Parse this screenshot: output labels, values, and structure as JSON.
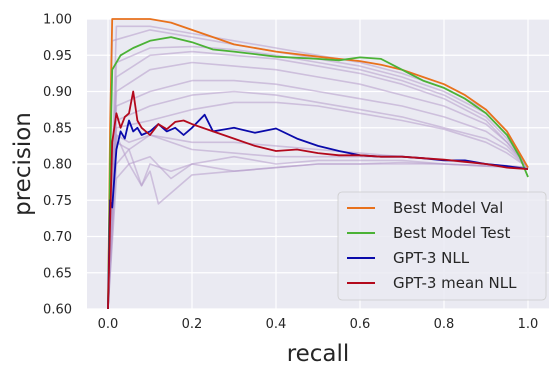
{
  "chart_data": {
    "type": "line",
    "xlabel": "recall",
    "ylabel": "precision",
    "xlim": [
      -0.05,
      1.05
    ],
    "ylim": [
      0.6,
      1.0
    ],
    "x_ticks": [
      0.0,
      0.2,
      0.4,
      0.6,
      0.8,
      1.0
    ],
    "x_tick_labels": [
      "0.0",
      "0.2",
      "0.4",
      "0.6",
      "0.8",
      "1.0"
    ],
    "y_ticks": [
      0.6,
      0.65,
      0.7,
      0.75,
      0.8,
      0.85,
      0.9,
      0.95,
      1.0
    ],
    "y_tick_labels": [
      "0.60",
      "0.65",
      "0.70",
      "0.75",
      "0.80",
      "0.85",
      "0.90",
      "0.95",
      "1.00"
    ],
    "grid": true,
    "background": "#EAEAF2",
    "legend_position": "lower-right",
    "series": [
      {
        "name": "Best Model Val",
        "color": "#E8711C",
        "in_legend": true,
        "x": [
          0.0,
          0.005,
          0.01,
          0.03,
          0.1,
          0.15,
          0.2,
          0.25,
          0.3,
          0.4,
          0.5,
          0.55,
          0.6,
          0.65,
          0.7,
          0.75,
          0.8,
          0.85,
          0.9,
          0.95,
          0.98,
          1.0
        ],
        "y": [
          0.6,
          0.85,
          1.0,
          1.0,
          1.0,
          0.995,
          0.985,
          0.975,
          0.965,
          0.955,
          0.948,
          0.945,
          0.942,
          0.937,
          0.93,
          0.92,
          0.91,
          0.895,
          0.875,
          0.845,
          0.815,
          0.795
        ]
      },
      {
        "name": "Best Model Test",
        "color": "#4BB236",
        "in_legend": true,
        "x": [
          0.0,
          0.005,
          0.01,
          0.03,
          0.06,
          0.1,
          0.15,
          0.2,
          0.25,
          0.3,
          0.4,
          0.5,
          0.55,
          0.6,
          0.65,
          0.7,
          0.75,
          0.8,
          0.85,
          0.9,
          0.95,
          0.98,
          1.0
        ],
        "y": [
          0.6,
          0.8,
          0.93,
          0.95,
          0.96,
          0.97,
          0.975,
          0.968,
          0.958,
          0.955,
          0.948,
          0.945,
          0.943,
          0.947,
          0.945,
          0.93,
          0.915,
          0.905,
          0.89,
          0.87,
          0.84,
          0.81,
          0.782
        ]
      },
      {
        "name": "GPT-3 NLL",
        "color": "#0A0AAA",
        "in_legend": true,
        "x": [
          0.0,
          0.005,
          0.01,
          0.02,
          0.03,
          0.04,
          0.05,
          0.06,
          0.07,
          0.08,
          0.1,
          0.12,
          0.14,
          0.16,
          0.18,
          0.2,
          0.23,
          0.25,
          0.3,
          0.35,
          0.4,
          0.45,
          0.5,
          0.55,
          0.6,
          0.65,
          0.7,
          0.75,
          0.8,
          0.85,
          0.9,
          0.95,
          1.0
        ],
        "y": [
          0.6,
          0.75,
          0.74,
          0.82,
          0.845,
          0.835,
          0.86,
          0.845,
          0.85,
          0.84,
          0.845,
          0.855,
          0.845,
          0.85,
          0.84,
          0.85,
          0.868,
          0.845,
          0.85,
          0.843,
          0.849,
          0.835,
          0.825,
          0.818,
          0.812,
          0.81,
          0.81,
          0.808,
          0.805,
          0.805,
          0.8,
          0.797,
          0.793
        ]
      },
      {
        "name": "GPT-3 mean NLL",
        "color": "#B3091C",
        "in_legend": true,
        "x": [
          0.0,
          0.005,
          0.01,
          0.02,
          0.03,
          0.04,
          0.05,
          0.06,
          0.07,
          0.08,
          0.1,
          0.12,
          0.14,
          0.16,
          0.18,
          0.2,
          0.25,
          0.3,
          0.35,
          0.4,
          0.45,
          0.5,
          0.55,
          0.6,
          0.65,
          0.7,
          0.75,
          0.8,
          0.85,
          0.9,
          0.95,
          1.0
        ],
        "y": [
          0.6,
          0.72,
          0.83,
          0.87,
          0.85,
          0.865,
          0.87,
          0.9,
          0.86,
          0.85,
          0.84,
          0.855,
          0.848,
          0.858,
          0.86,
          0.855,
          0.845,
          0.835,
          0.825,
          0.818,
          0.82,
          0.815,
          0.812,
          0.812,
          0.81,
          0.81,
          0.808,
          0.806,
          0.803,
          0.8,
          0.795,
          0.793
        ]
      },
      {
        "color": "#B49BCB",
        "in_legend": false,
        "x": [
          0.0,
          0.01,
          0.1,
          0.2,
          0.3,
          0.4,
          0.5,
          0.6,
          0.7,
          0.8,
          0.9,
          0.95,
          1.0
        ],
        "y": [
          0.6,
          0.97,
          0.985,
          0.975,
          0.965,
          0.955,
          0.945,
          0.935,
          0.92,
          0.9,
          0.87,
          0.84,
          0.795
        ]
      },
      {
        "color": "#B49BCB",
        "in_legend": false,
        "x": [
          0.0,
          0.02,
          0.1,
          0.2,
          0.3,
          0.4,
          0.5,
          0.6,
          0.7,
          0.8,
          0.9,
          0.95,
          1.0
        ],
        "y": [
          0.6,
          0.92,
          0.95,
          0.955,
          0.95,
          0.945,
          0.935,
          0.925,
          0.91,
          0.89,
          0.86,
          0.83,
          0.795
        ]
      },
      {
        "color": "#B49BCB",
        "in_legend": false,
        "x": [
          0.0,
          0.02,
          0.1,
          0.2,
          0.3,
          0.4,
          0.5,
          0.6,
          0.7,
          0.8,
          0.9,
          0.95,
          1.0
        ],
        "y": [
          0.6,
          0.9,
          0.93,
          0.94,
          0.935,
          0.93,
          0.92,
          0.91,
          0.895,
          0.88,
          0.855,
          0.83,
          0.795
        ]
      },
      {
        "color": "#B49BCB",
        "in_legend": false,
        "x": [
          0.0,
          0.02,
          0.1,
          0.2,
          0.3,
          0.4,
          0.5,
          0.6,
          0.7,
          0.8,
          0.9,
          0.95,
          1.0
        ],
        "y": [
          0.6,
          0.88,
          0.9,
          0.915,
          0.915,
          0.91,
          0.9,
          0.89,
          0.88,
          0.865,
          0.845,
          0.825,
          0.795
        ]
      },
      {
        "color": "#B49BCB",
        "in_legend": false,
        "x": [
          0.0,
          0.02,
          0.1,
          0.2,
          0.3,
          0.4,
          0.5,
          0.6,
          0.7,
          0.8,
          0.9,
          0.95,
          1.0
        ],
        "y": [
          0.6,
          0.86,
          0.88,
          0.895,
          0.9,
          0.895,
          0.885,
          0.875,
          0.865,
          0.85,
          0.835,
          0.82,
          0.795
        ]
      },
      {
        "color": "#B49BCB",
        "in_legend": false,
        "x": [
          0.0,
          0.02,
          0.1,
          0.2,
          0.3,
          0.4,
          0.5,
          0.6,
          0.7,
          0.8,
          0.9,
          0.95,
          1.0
        ],
        "y": [
          0.6,
          0.99,
          0.99,
          0.98,
          0.97,
          0.96,
          0.95,
          0.94,
          0.925,
          0.905,
          0.875,
          0.845,
          0.795
        ]
      },
      {
        "color": "#B49BCB",
        "in_legend": false,
        "x": [
          0.0,
          0.02,
          0.1,
          0.2,
          0.3,
          0.4,
          0.5,
          0.6,
          0.7,
          0.8,
          0.9,
          0.95,
          1.0
        ],
        "y": [
          0.6,
          0.94,
          0.96,
          0.962,
          0.958,
          0.95,
          0.94,
          0.93,
          0.915,
          0.895,
          0.865,
          0.835,
          0.795
        ]
      },
      {
        "color": "#B49BCB",
        "in_legend": false,
        "x": [
          0.0,
          0.02,
          0.1,
          0.2,
          0.3,
          0.4,
          0.5,
          0.6,
          0.7,
          0.8,
          0.9,
          0.95,
          1.0
        ],
        "y": [
          0.6,
          0.85,
          0.86,
          0.875,
          0.885,
          0.885,
          0.88,
          0.87,
          0.86,
          0.848,
          0.83,
          0.815,
          0.795
        ]
      },
      {
        "color": "#B49BCB",
        "in_legend": false,
        "x": [
          0.0,
          0.02,
          0.05,
          0.1,
          0.15,
          0.2,
          0.3,
          0.4,
          0.5,
          0.6,
          0.7,
          0.8,
          0.9,
          1.0
        ],
        "y": [
          0.6,
          0.78,
          0.8,
          0.81,
          0.78,
          0.8,
          0.81,
          0.8,
          0.805,
          0.805,
          0.805,
          0.8,
          0.798,
          0.795
        ]
      },
      {
        "color": "#B49BCB",
        "in_legend": false,
        "x": [
          0.0,
          0.02,
          0.05,
          0.08,
          0.1,
          0.15,
          0.2,
          0.3,
          0.4,
          0.5,
          0.6,
          0.7,
          0.8,
          0.9,
          1.0
        ],
        "y": [
          0.6,
          0.8,
          0.82,
          0.77,
          0.8,
          0.79,
          0.8,
          0.79,
          0.795,
          0.8,
          0.8,
          0.802,
          0.8,
          0.797,
          0.795
        ]
      },
      {
        "color": "#B49BCB",
        "in_legend": false,
        "x": [
          0.0,
          0.02,
          0.05,
          0.08,
          0.1,
          0.12,
          0.15,
          0.2,
          0.3,
          0.4,
          0.5,
          0.6,
          0.7,
          0.8,
          0.9,
          1.0
        ],
        "y": [
          0.6,
          0.84,
          0.8,
          0.77,
          0.79,
          0.745,
          0.76,
          0.785,
          0.79,
          0.795,
          0.8,
          0.8,
          0.8,
          0.8,
          0.797,
          0.795
        ]
      },
      {
        "color": "#B49BCB",
        "in_legend": false,
        "x": [
          0.0,
          0.02,
          0.05,
          0.1,
          0.15,
          0.2,
          0.3,
          0.4,
          0.5,
          0.6,
          0.7,
          0.8,
          0.9,
          1.0
        ],
        "y": [
          0.6,
          0.84,
          0.83,
          0.84,
          0.835,
          0.83,
          0.83,
          0.825,
          0.82,
          0.815,
          0.81,
          0.806,
          0.8,
          0.795
        ]
      },
      {
        "color": "#B49BCB",
        "in_legend": false,
        "x": [
          0.0,
          0.02,
          0.05,
          0.1,
          0.15,
          0.2,
          0.3,
          0.4,
          0.5,
          0.6,
          0.7,
          0.8,
          0.9,
          1.0
        ],
        "y": [
          0.6,
          0.83,
          0.82,
          0.84,
          0.83,
          0.82,
          0.815,
          0.81,
          0.81,
          0.81,
          0.81,
          0.805,
          0.8,
          0.795
        ]
      }
    ]
  }
}
